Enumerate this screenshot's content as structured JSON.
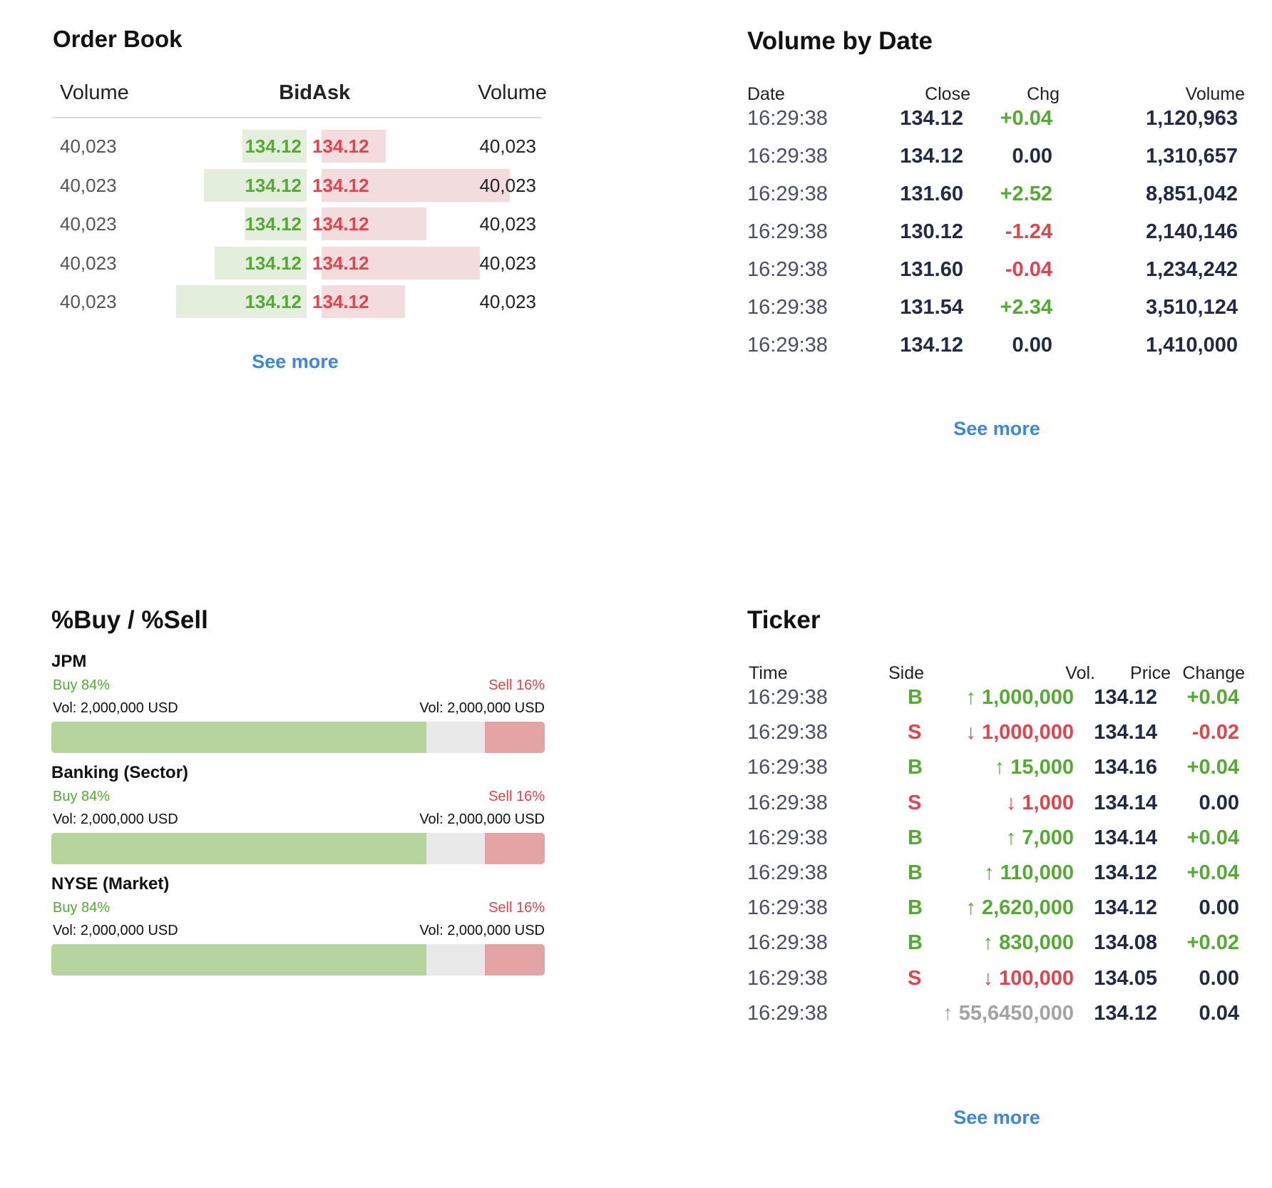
{
  "colors": {
    "up": "#55aa33",
    "down": "#e0444c",
    "neutral": "#232a44",
    "link": "#3b88de",
    "muted": "#a3a3a3"
  },
  "order_book": {
    "title": "Order Book",
    "headers": {
      "bid_volume": "Volume",
      "bid": "Bid",
      "ask": "Ask",
      "ask_volume": "Volume"
    },
    "rows": [
      {
        "bid_volume": "40,023",
        "bid": "134.12",
        "ask": "134.12",
        "ask_volume": "40,023",
        "bid_depth": 0.3,
        "ask_depth": 0.3
      },
      {
        "bid_volume": "40,023",
        "bid": "134.12",
        "ask": "134.12",
        "ask_volume": "40,023",
        "bid_depth": 0.48,
        "ask_depth": 0.88
      },
      {
        "bid_volume": "40,023",
        "bid": "134.12",
        "ask": "134.12",
        "ask_volume": "40,023",
        "bid_depth": 0.29,
        "ask_depth": 0.49
      },
      {
        "bid_volume": "40,023",
        "bid": "134.12",
        "ask": "134.12",
        "ask_volume": "40,023",
        "bid_depth": 0.43,
        "ask_depth": 0.74
      },
      {
        "bid_volume": "40,023",
        "bid": "134.12",
        "ask": "134.12",
        "ask_volume": "40,023",
        "bid_depth": 0.61,
        "ask_depth": 0.39
      }
    ],
    "see_more": "See more"
  },
  "volume_by_date": {
    "title": "Volume by Date",
    "headers": {
      "date": "Date",
      "close": "Close",
      "chg": "Chg",
      "volume": "Volume"
    },
    "rows": [
      {
        "date": "16:29:38",
        "close": "134.12",
        "chg": "+0.04",
        "dir": "up",
        "volume": "1,120,963"
      },
      {
        "date": "16:29:38",
        "close": "134.12",
        "chg": "0.00",
        "dir": "flat",
        "volume": "1,310,657"
      },
      {
        "date": "16:29:38",
        "close": "131.60",
        "chg": "+2.52",
        "dir": "up",
        "volume": "8,851,042"
      },
      {
        "date": "16:29:38",
        "close": "130.12",
        "chg": "-1.24",
        "dir": "down",
        "volume": "2,140,146"
      },
      {
        "date": "16:29:38",
        "close": "131.60",
        "chg": "-0.04",
        "dir": "down",
        "volume": "1,234,242"
      },
      {
        "date": "16:29:38",
        "close": "131.54",
        "chg": "+2.34",
        "dir": "up",
        "volume": "3,510,124"
      },
      {
        "date": "16:29:38",
        "close": "134.12",
        "chg": "0.00",
        "dir": "flat",
        "volume": "1,410,000"
      }
    ],
    "see_more": "See more"
  },
  "buy_sell": {
    "title": "%Buy / %Sell",
    "items": [
      {
        "name": "JPM",
        "buy_label": "Buy 84%",
        "sell_label": "Sell 16%",
        "buy_vol": "Vol: 2,000,000 USD",
        "sell_vol": "Vol: 2,000,000 USD",
        "buy_pct": 84,
        "sell_pct": 16
      },
      {
        "name": "Banking (Sector)",
        "buy_label": "Buy 84%",
        "sell_label": "Sell 16%",
        "buy_vol": "Vol: 2,000,000 USD",
        "sell_vol": "Vol: 2,000,000 USD",
        "buy_pct": 84,
        "sell_pct": 16
      },
      {
        "name": "NYSE (Market)",
        "buy_label": "Buy 84%",
        "sell_label": "Sell 16%",
        "buy_vol": "Vol: 2,000,000 USD",
        "sell_vol": "Vol: 2,000,000 USD",
        "buy_pct": 84,
        "sell_pct": 16
      }
    ]
  },
  "ticker": {
    "title": "Ticker",
    "headers": {
      "time": "Time",
      "side": "Side",
      "vol": "Vol.",
      "price": "Price",
      "change": "Change"
    },
    "rows": [
      {
        "time": "16:29:38",
        "side": "B",
        "arrow": "↑",
        "vol": "1,000,000",
        "dir": "up",
        "price": "134.12",
        "change": "+0.04",
        "chg_dir": "up"
      },
      {
        "time": "16:29:38",
        "side": "S",
        "arrow": "↓",
        "vol": "1,000,000",
        "dir": "down",
        "price": "134.14",
        "change": "-0.02",
        "chg_dir": "down"
      },
      {
        "time": "16:29:38",
        "side": "B",
        "arrow": "↑",
        "vol": "15,000",
        "dir": "up",
        "price": "134.16",
        "change": "+0.04",
        "chg_dir": "up"
      },
      {
        "time": "16:29:38",
        "side": "S",
        "arrow": "↓",
        "vol": "1,000",
        "dir": "down",
        "price": "134.14",
        "change": "0.00",
        "chg_dir": "flat"
      },
      {
        "time": "16:29:38",
        "side": "B",
        "arrow": "↑",
        "vol": "7,000",
        "dir": "up",
        "price": "134.14",
        "change": "+0.04",
        "chg_dir": "up"
      },
      {
        "time": "16:29:38",
        "side": "B",
        "arrow": "↑",
        "vol": "110,000",
        "dir": "up",
        "price": "134.12",
        "change": "+0.04",
        "chg_dir": "up"
      },
      {
        "time": "16:29:38",
        "side": "B",
        "arrow": "↑",
        "vol": "2,620,000",
        "dir": "up",
        "price": "134.12",
        "change": "0.00",
        "chg_dir": "flat"
      },
      {
        "time": "16:29:38",
        "side": "B",
        "arrow": "↑",
        "vol": "830,000",
        "dir": "up",
        "price": "134.08",
        "change": "+0.02",
        "chg_dir": "up"
      },
      {
        "time": "16:29:38",
        "side": "S",
        "arrow": "↓",
        "vol": "100,000",
        "dir": "down",
        "price": "134.05",
        "change": "0.00",
        "chg_dir": "flat"
      },
      {
        "time": "16:29:38",
        "side": "",
        "arrow": "↑",
        "vol": "55,6450,000",
        "dir": "muted",
        "price": "134.12",
        "change": "0.04",
        "chg_dir": "flat"
      }
    ],
    "see_more": "See more"
  }
}
